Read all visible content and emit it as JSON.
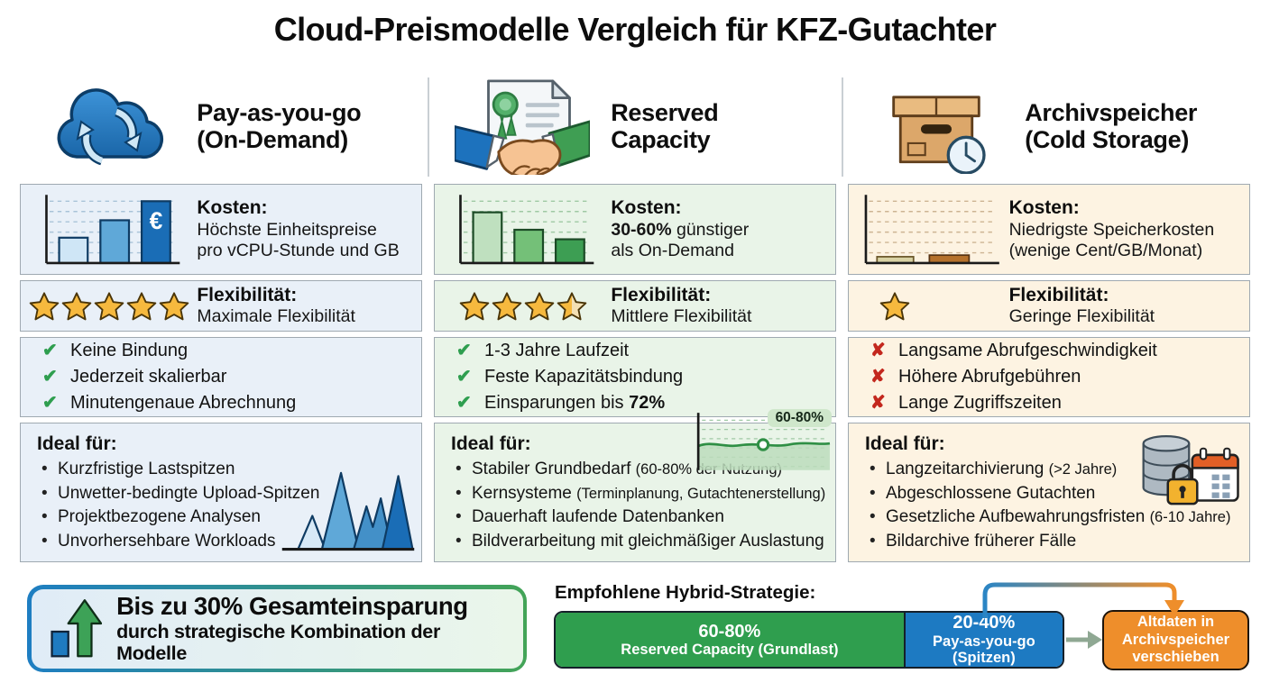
{
  "title": "Cloud-Preismodelle Vergleich für KFZ-Gutachter",
  "icons": {
    "check_mark": "✔",
    "x_mark": "✘",
    "euro": "€"
  },
  "columns": [
    {
      "header": {
        "line1": "Pay-as-you-go",
        "line2": "(On-Demand)",
        "icon": "cloud-sync-icon"
      },
      "kosten": {
        "label": "Kosten:",
        "line1": "Höchste Einheitspreise",
        "line2": "pro vCPU-Stunde und GB"
      },
      "flex": {
        "label": "Flexibilität:",
        "text": "Maximale Flexibilität",
        "stars": 5
      },
      "checks": [
        {
          "text": "Keine Bindung",
          "bold": ""
        },
        {
          "text": "Jederzeit skalierbar",
          "bold": ""
        },
        {
          "text": "Minutengenaue Abrechnung",
          "bold": ""
        }
      ],
      "ideal": {
        "label": "Ideal für:",
        "items": [
          {
            "main": "Kurzfristige Lastspitzen",
            "paren": ""
          },
          {
            "main": "Unwetter-bedingte Upload-Spitzen",
            "paren": ""
          },
          {
            "main": "Projektbezogene Analysen",
            "paren": ""
          },
          {
            "main": "Unvorhersehbare Workloads",
            "paren": ""
          }
        ]
      }
    },
    {
      "header": {
        "line1": "Reserved",
        "line2": "Capacity",
        "icon": "handshake-contract-icon"
      },
      "kosten": {
        "label": "Kosten:",
        "bold": "30-60%",
        "line1_rest": " günstiger",
        "line2": "als On-Demand"
      },
      "flex": {
        "label": "Flexibilität:",
        "text": "Mittlere Flexibilität",
        "stars": 3.5
      },
      "checks": [
        {
          "text": "1-3 Jahre Laufzeit",
          "bold": ""
        },
        {
          "text": "Feste Kapazitätsbindung",
          "bold": ""
        },
        {
          "text": "Einsparungen bis ",
          "bold": "72%"
        }
      ],
      "ideal": {
        "label": "Ideal für:",
        "chart_badge": "60-80%",
        "items": [
          {
            "main": "Stabiler Grundbedarf ",
            "paren": "(60-80% der Nutzung)"
          },
          {
            "main": "Kernsysteme ",
            "paren": "(Terminplanung, Gutachtenerstellung)"
          },
          {
            "main": "Dauerhaft laufende Datenbanken",
            "paren": ""
          },
          {
            "main": "Bildverarbeitung mit gleichmäßiger Auslastung",
            "paren": ""
          }
        ]
      }
    },
    {
      "header": {
        "line1": "Archivspeicher",
        "line2": "(Cold Storage)",
        "icon": "archive-box-clock-icon"
      },
      "kosten": {
        "label": "Kosten:",
        "line1": "Niedrigste Speicherkosten",
        "line2": "(wenige Cent/GB/Monat)"
      },
      "flex": {
        "label": "Flexibilität:",
        "text": "Geringe Flexibilität",
        "stars": 1
      },
      "checks": [
        {
          "text": "Langsame Abrufgeschwindigkeit",
          "bold": ""
        },
        {
          "text": "Höhere Abrufgebühren",
          "bold": ""
        },
        {
          "text": "Lange Zugriffszeiten",
          "bold": ""
        }
      ],
      "ideal": {
        "label": "Ideal für:",
        "items": [
          {
            "main": "Langzeitarchivierung ",
            "paren": "(>2 Jahre)"
          },
          {
            "main": "Abgeschlossene Gutachten",
            "paren": ""
          },
          {
            "main": "Gesetzliche Aufbewahrungsfristen ",
            "paren": "(6-10 Jahre)"
          },
          {
            "main": "Bildarchive früherer Fälle",
            "paren": ""
          }
        ]
      }
    }
  ],
  "footer": {
    "savings_line1": "Bis zu 30% Gesamteinsparung",
    "savings_line2": "durch strategische Kombination der Modelle",
    "hybrid_heading": "Empfohlene Hybrid-Strategie:",
    "segment_green": {
      "percent": "60-80%",
      "label": "Reserved Capacity (Grundlast)"
    },
    "segment_blue": {
      "percent": "20-40%",
      "label": "Pay-as-you-go",
      "label2": "(Spitzen)"
    },
    "archive_action": {
      "line1": "Altdaten in",
      "line2": "Archivspeicher",
      "line3": "verschieben"
    }
  },
  "colors": {
    "column_payg_bg": "#e9f0f8",
    "column_reserved_bg": "#e9f4e8",
    "column_archive_bg": "#fdf3e2",
    "accent_blue": "#1d7ac2",
    "accent_green": "#2f9e4e",
    "accent_orange": "#ee8e2b",
    "check_green": "#2e9e4f",
    "cross_red": "#c3271d",
    "star_gold": "#f6b93e"
  }
}
